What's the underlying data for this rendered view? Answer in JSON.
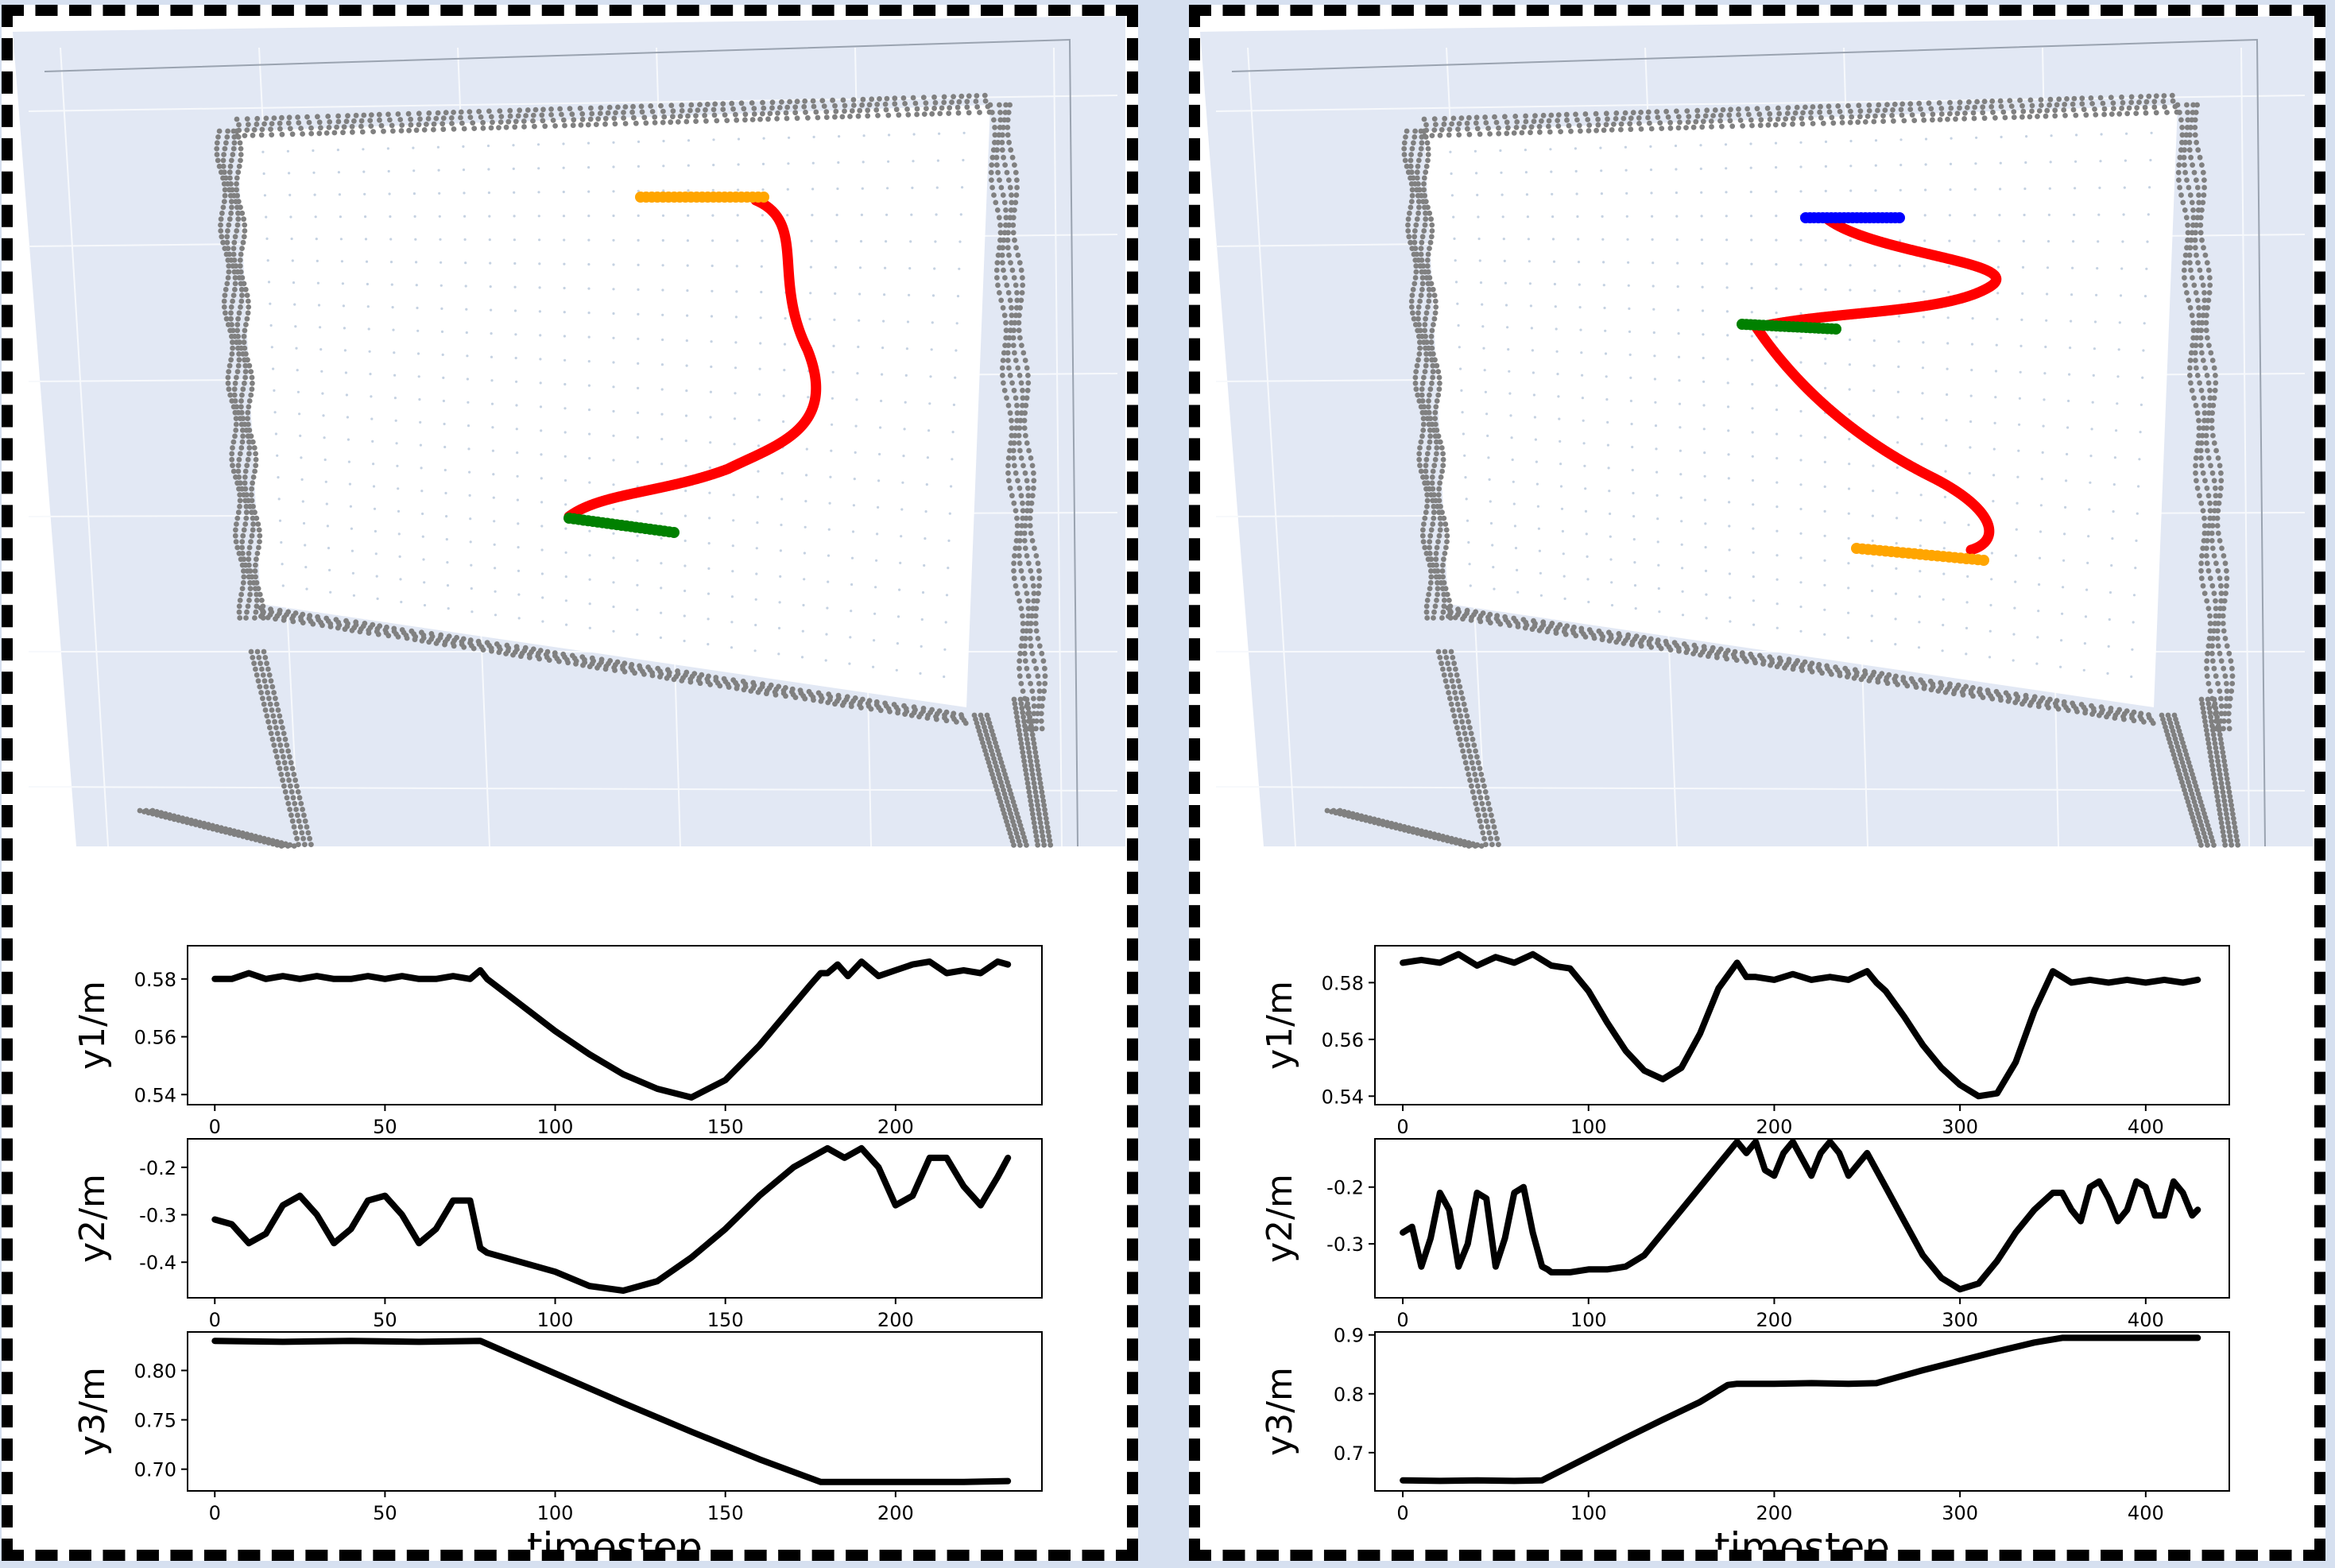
{
  "panels": [
    {
      "id": "left",
      "scene": {
        "colors": {
          "points": "#808080",
          "mesh": "#c5d2e2",
          "start": "#ffa500",
          "end": "#008000",
          "path": "#ff0000",
          "bg": "#e2e8f4"
        },
        "markers": [
          "start",
          "end",
          "path"
        ]
      },
      "charts": [
        {
          "type": "line",
          "ylabel": "y1/m",
          "xticks": [
            0,
            50,
            100,
            150,
            200
          ],
          "yticks": [
            0.54,
            0.56,
            0.58
          ],
          "xlim": [
            -8,
            243
          ],
          "ylim": [
            0.5365,
            0.5915
          ],
          "series": [
            {
              "x": [
                0,
                5,
                10,
                15,
                20,
                25,
                30,
                35,
                40,
                45,
                50,
                55,
                60,
                65,
                70,
                75,
                78,
                80,
                90,
                100,
                110,
                120,
                130,
                140,
                150,
                160,
                170,
                175,
                178,
                180,
                183,
                186,
                190,
                195,
                200,
                205,
                210,
                215,
                220,
                225,
                230,
                233
              ],
              "y": [
                0.58,
                0.58,
                0.582,
                0.58,
                0.581,
                0.58,
                0.581,
                0.58,
                0.58,
                0.581,
                0.58,
                0.581,
                0.58,
                0.58,
                0.581,
                0.58,
                0.583,
                0.58,
                0.571,
                0.562,
                0.554,
                0.547,
                0.542,
                0.539,
                0.545,
                0.557,
                0.571,
                0.578,
                0.582,
                0.582,
                0.585,
                0.581,
                0.586,
                0.581,
                0.583,
                0.585,
                0.586,
                0.582,
                0.583,
                0.582,
                0.586,
                0.585
              ]
            }
          ]
        },
        {
          "type": "line",
          "ylabel": "y2/m",
          "xticks": [
            0,
            50,
            100,
            150,
            200
          ],
          "yticks": [
            -0.4,
            -0.3,
            -0.2
          ],
          "xlim": [
            -8,
            243
          ],
          "ylim": [
            -0.475,
            -0.14
          ],
          "series": [
            {
              "x": [
                0,
                5,
                10,
                15,
                20,
                25,
                30,
                35,
                40,
                45,
                50,
                55,
                60,
                65,
                70,
                75,
                78,
                80,
                90,
                100,
                110,
                120,
                130,
                140,
                150,
                160,
                170,
                180,
                185,
                190,
                195,
                200,
                205,
                210,
                215,
                220,
                225,
                230,
                233
              ],
              "y": [
                -0.31,
                -0.32,
                -0.36,
                -0.34,
                -0.28,
                -0.26,
                -0.3,
                -0.36,
                -0.33,
                -0.27,
                -0.26,
                -0.3,
                -0.36,
                -0.33,
                -0.27,
                -0.27,
                -0.37,
                -0.38,
                -0.4,
                -0.42,
                -0.45,
                -0.46,
                -0.44,
                -0.39,
                -0.33,
                -0.26,
                -0.2,
                -0.16,
                -0.18,
                -0.16,
                -0.2,
                -0.28,
                -0.26,
                -0.18,
                -0.18,
                -0.24,
                -0.28,
                -0.22,
                -0.18
              ]
            }
          ]
        },
        {
          "type": "line",
          "ylabel": "y3/m",
          "xticks": [
            0,
            50,
            100,
            150,
            200
          ],
          "yticks": [
            0.7,
            0.75,
            0.8
          ],
          "xlim": [
            -8,
            243
          ],
          "ylim": [
            0.678,
            0.839
          ],
          "series": [
            {
              "x": [
                0,
                20,
                40,
                60,
                78,
                100,
                120,
                140,
                160,
                178,
                200,
                220,
                233
              ],
              "y": [
                0.83,
                0.829,
                0.83,
                0.829,
                0.83,
                0.797,
                0.767,
                0.738,
                0.71,
                0.687,
                0.687,
                0.687,
                0.688
              ]
            }
          ]
        }
      ],
      "xlabel": "timestep"
    },
    {
      "id": "right",
      "scene": {
        "colors": {
          "points": "#808080",
          "mesh": "#c5d2e2",
          "start": "#0000ff",
          "mid": "#008000",
          "end": "#ffa500",
          "path": "#ff0000",
          "bg": "#e2e8f4"
        },
        "markers": [
          "start",
          "mid",
          "end",
          "path"
        ]
      },
      "charts": [
        {
          "type": "line",
          "ylabel": "y1/m",
          "xticks": [
            0,
            100,
            200,
            300,
            400
          ],
          "yticks": [
            0.54,
            0.56,
            0.58
          ],
          "xlim": [
            -15,
            445
          ],
          "ylim": [
            0.537,
            0.593
          ],
          "series": [
            {
              "x": [
                0,
                10,
                20,
                30,
                40,
                50,
                60,
                70,
                80,
                90,
                100,
                110,
                120,
                130,
                140,
                150,
                160,
                170,
                180,
                185,
                190,
                200,
                210,
                220,
                230,
                240,
                250,
                255,
                260,
                270,
                280,
                290,
                300,
                310,
                320,
                330,
                340,
                350,
                360,
                370,
                380,
                390,
                400,
                410,
                420,
                428
              ],
              "y": [
                0.587,
                0.588,
                0.587,
                0.59,
                0.586,
                0.589,
                0.587,
                0.59,
                0.586,
                0.585,
                0.577,
                0.566,
                0.556,
                0.549,
                0.546,
                0.55,
                0.562,
                0.578,
                0.587,
                0.582,
                0.582,
                0.581,
                0.583,
                0.581,
                0.582,
                0.581,
                0.584,
                0.58,
                0.577,
                0.568,
                0.558,
                0.55,
                0.544,
                0.54,
                0.541,
                0.552,
                0.57,
                0.584,
                0.58,
                0.581,
                0.58,
                0.581,
                0.58,
                0.581,
                0.58,
                0.581
              ]
            }
          ]
        },
        {
          "type": "line",
          "ylabel": "y2/m",
          "xticks": [
            0,
            100,
            200,
            300,
            400
          ],
          "yticks": [
            -0.3,
            -0.2
          ],
          "xlim": [
            -15,
            445
          ],
          "ylim": [
            -0.395,
            -0.115
          ],
          "series": [
            {
              "x": [
                0,
                5,
                10,
                15,
                20,
                25,
                30,
                35,
                40,
                45,
                50,
                55,
                60,
                65,
                70,
                75,
                78,
                80,
                90,
                100,
                110,
                120,
                130,
                140,
                150,
                160,
                170,
                175,
                180,
                185,
                190,
                195,
                200,
                205,
                210,
                215,
                220,
                225,
                230,
                235,
                240,
                245,
                250,
                255,
                260,
                270,
                280,
                290,
                300,
                310,
                320,
                330,
                340,
                350,
                355,
                360,
                365,
                370,
                375,
                380,
                385,
                390,
                395,
                400,
                405,
                410,
                415,
                420,
                425,
                428
              ],
              "y": [
                -0.28,
                -0.27,
                -0.34,
                -0.29,
                -0.21,
                -0.24,
                -0.34,
                -0.3,
                -0.21,
                -0.22,
                -0.34,
                -0.29,
                -0.21,
                -0.2,
                -0.28,
                -0.34,
                -0.345,
                -0.35,
                -0.35,
                -0.345,
                -0.345,
                -0.34,
                -0.32,
                -0.28,
                -0.24,
                -0.2,
                -0.16,
                -0.14,
                -0.12,
                -0.14,
                -0.12,
                -0.17,
                -0.18,
                -0.14,
                -0.12,
                -0.15,
                -0.18,
                -0.14,
                -0.12,
                -0.14,
                -0.18,
                -0.16,
                -0.14,
                -0.17,
                -0.2,
                -0.26,
                -0.32,
                -0.36,
                -0.38,
                -0.37,
                -0.33,
                -0.28,
                -0.24,
                -0.21,
                -0.21,
                -0.24,
                -0.26,
                -0.2,
                -0.19,
                -0.22,
                -0.26,
                -0.24,
                -0.19,
                -0.2,
                -0.25,
                -0.25,
                -0.19,
                -0.21,
                -0.25,
                -0.24
              ]
            }
          ]
        },
        {
          "type": "line",
          "ylabel": "y3/m",
          "xticks": [
            0,
            100,
            200,
            300,
            400
          ],
          "yticks": [
            0.7,
            0.8,
            0.9
          ],
          "xlim": [
            -15,
            445
          ],
          "ylim": [
            0.635,
            0.905
          ],
          "series": [
            {
              "x": [
                0,
                20,
                40,
                60,
                75,
                100,
                120,
                140,
                160,
                175,
                180,
                200,
                220,
                240,
                255,
                280,
                300,
                320,
                340,
                355,
                380,
                400,
                428
              ],
              "y": [
                0.653,
                0.652,
                0.653,
                0.652,
                0.653,
                0.693,
                0.725,
                0.756,
                0.786,
                0.815,
                0.817,
                0.817,
                0.818,
                0.817,
                0.818,
                0.84,
                0.856,
                0.872,
                0.887,
                0.895,
                0.895,
                0.895,
                0.895
              ]
            }
          ]
        }
      ],
      "xlabel": "timestep"
    }
  ]
}
